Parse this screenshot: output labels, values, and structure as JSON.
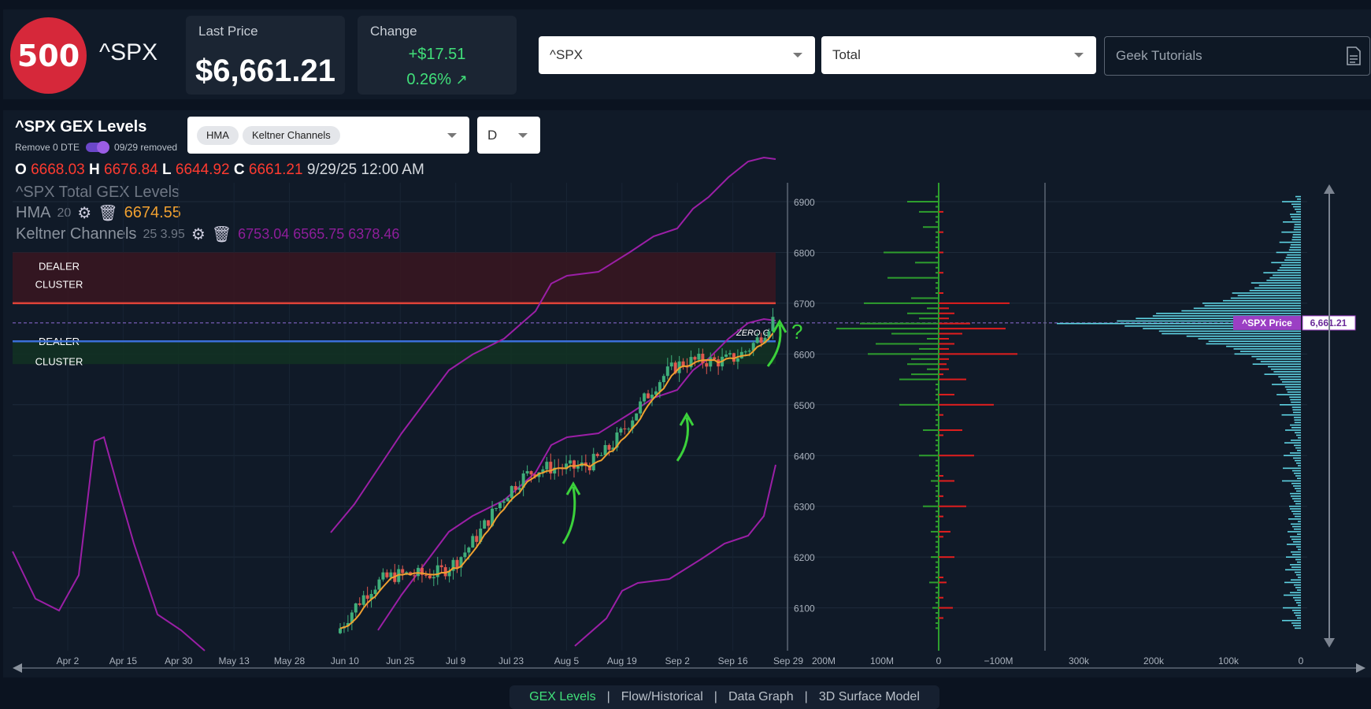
{
  "header": {
    "logo_text": "500",
    "ticker": "^SPX",
    "last_price_label": "Last Price",
    "last_price": "$6,661.21",
    "change_label": "Change",
    "change_amount": "+$17.51",
    "change_pct": "0.26%",
    "symbol_select": "^SPX",
    "type_select": "Total",
    "tutorials": "Geek Tutorials"
  },
  "panel": {
    "title": "^SPX GEX Levels",
    "remove_label": "Remove 0 DTE",
    "removed_text": "09/29 removed",
    "indicator_chips": [
      "HMA",
      "Keltner Channels"
    ],
    "interval": "D"
  },
  "ohlc": {
    "o_label": "O",
    "o": "6668.03",
    "h_label": "H",
    "h": "6676.84",
    "l_label": "L",
    "l": "6644.92",
    "c_label": "C",
    "c": "6661.21",
    "datetime": "9/29/25 12:00 AM"
  },
  "legend": {
    "series_title": "^SPX Total GEX Levels",
    "hma_name": "HMA",
    "hma_param": "20",
    "hma_value": "6674.55",
    "kc_name": "Keltner Channels",
    "kc_params": "25 3.95",
    "kc_values": "6753.04 6565.75 6378.46"
  },
  "chart_data": {
    "type": "candlestick",
    "price_axis": [
      6900,
      6800,
      6700,
      6600,
      6500,
      6400,
      6300,
      6200,
      6100
    ],
    "price_range": [
      6050,
      6920
    ],
    "date_ticks": [
      "Apr 2",
      "Apr 15",
      "Apr 30",
      "May 13",
      "May 28",
      "Jun 10",
      "Jun 25",
      "Jul 9",
      "Jul 23",
      "Aug 5",
      "Aug 19",
      "Sep 2",
      "Sep 16",
      "Sep 29"
    ],
    "dealer_cluster_label_1": "DEALER",
    "dealer_cluster_label_2": "CLUSTER",
    "dealer_cluster_upper": [
      6700,
      6800
    ],
    "dealer_cluster_lower": [
      6580,
      6625
    ],
    "red_level": 6700,
    "zero_gamma_level": 6625,
    "zero_gamma_label": "ZERO G",
    "current_price_level": 6661.21,
    "price_tag_label": "^SPX Price",
    "price_tag_value": "6,661.21",
    "gex_axis_labels": [
      "200M",
      "100M",
      "0",
      "−100M"
    ],
    "oi_axis_labels": [
      "300k",
      "200k",
      "100k",
      "0"
    ],
    "annotation_mark": "?",
    "colors": {
      "up": "#3fae7a",
      "down": "#e0584e",
      "hma": "#f0a030",
      "keltner": "#9b1fa6",
      "positive_gex": "#2e9e2e",
      "negative_gex": "#e01e1e",
      "oi": "#5fd4e4",
      "zero_g": "#3b6fd8",
      "red_line": "#e04338"
    }
  },
  "tabs": [
    "GEX Levels",
    "Flow/Historical",
    "Data Graph",
    "3D Surface Model"
  ]
}
